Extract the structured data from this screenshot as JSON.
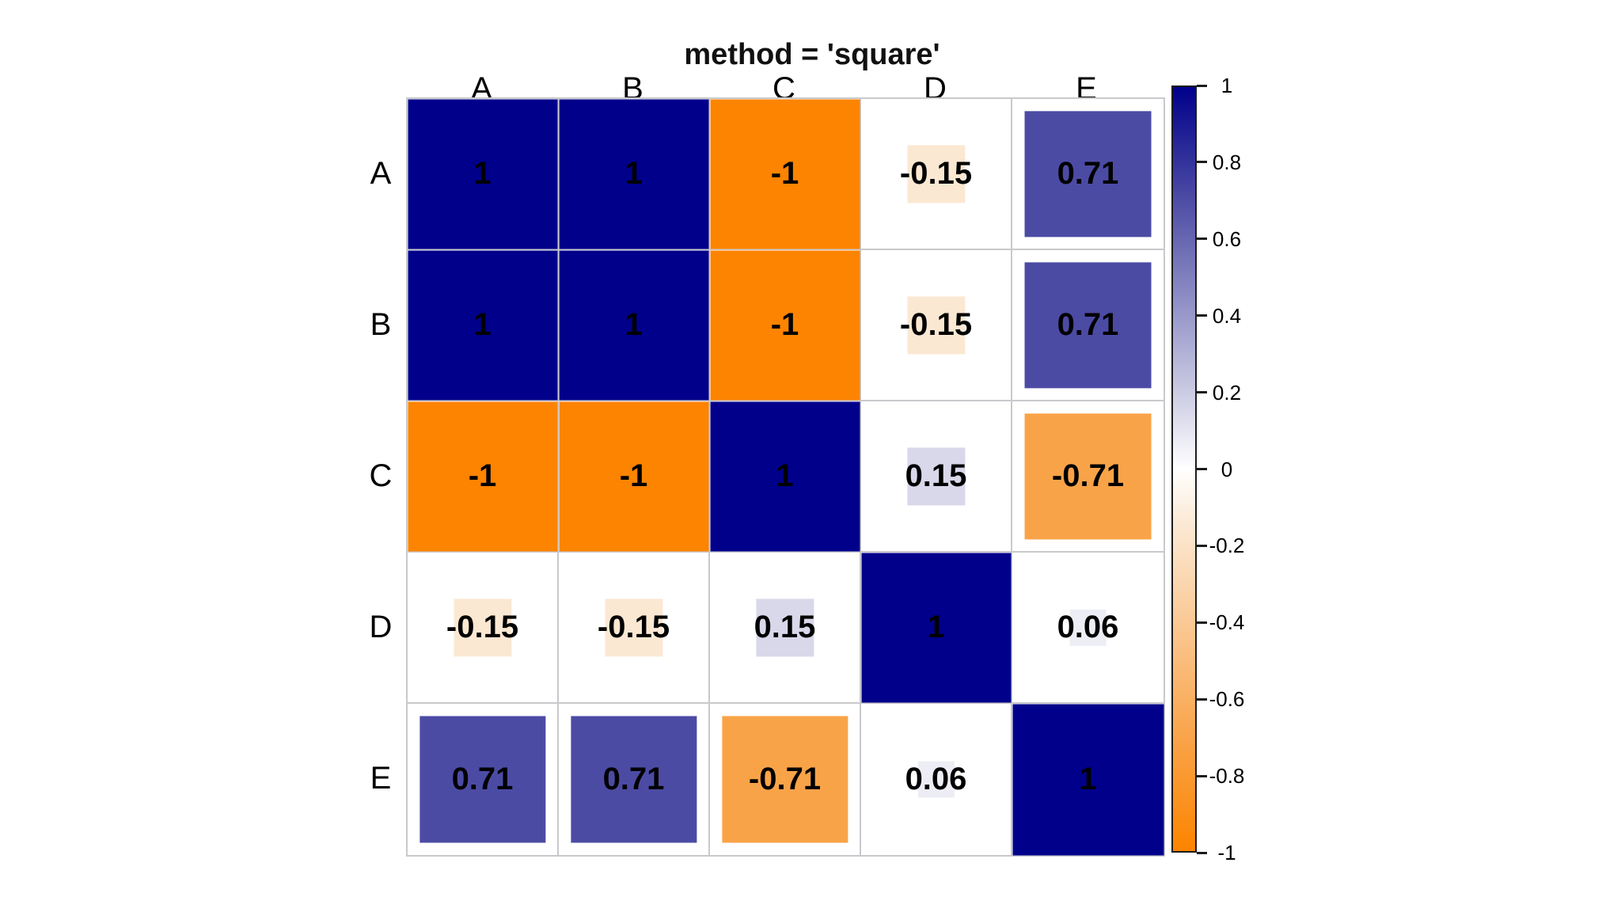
{
  "chart_data": {
    "type": "heatmap",
    "title": "method = 'square'",
    "variables": [
      "A",
      "B",
      "C",
      "D",
      "E"
    ],
    "matrix": [
      [
        1,
        1,
        -1,
        -0.15,
        0.71
      ],
      [
        1,
        1,
        -1,
        -0.15,
        0.71
      ],
      [
        -1,
        -1,
        1,
        0.15,
        -0.71
      ],
      [
        -0.15,
        -0.15,
        0.15,
        1,
        0.06
      ],
      [
        0.71,
        0.71,
        -0.71,
        0.06,
        1
      ]
    ],
    "size_rule": "square_side_fraction = sqrt(abs(value))",
    "value_colors": {
      "1": "#00008B",
      "0.71": "#4C4BA4",
      "0.15": "#D8D8EA",
      "0.06": "#EDEDF5",
      "-0.15": "#FBE8D3",
      "-0.71": "#F9A348",
      "-1": "#FC8400"
    },
    "grid_line_color": "#c9c9cd",
    "text_color": "#000000",
    "colorbar": {
      "min": -1,
      "max": 1,
      "tick_labels": [
        "1",
        "0.8",
        "0.6",
        "0.4",
        "0.2",
        "0",
        "-0.2",
        "-0.4",
        "-0.6",
        "-0.8",
        "-1"
      ],
      "gradient_stops": [
        {
          "pos": 0.0,
          "color": "#00008B"
        },
        {
          "pos": 0.145,
          "color": "#4C4BA4"
        },
        {
          "pos": 0.425,
          "color": "#D8D8EA"
        },
        {
          "pos": 0.5,
          "color": "#FFFFFF"
        },
        {
          "pos": 0.575,
          "color": "#FBE8D3"
        },
        {
          "pos": 0.855,
          "color": "#F9A348"
        },
        {
          "pos": 1.0,
          "color": "#FC8400"
        }
      ],
      "legend_position": "right"
    }
  }
}
